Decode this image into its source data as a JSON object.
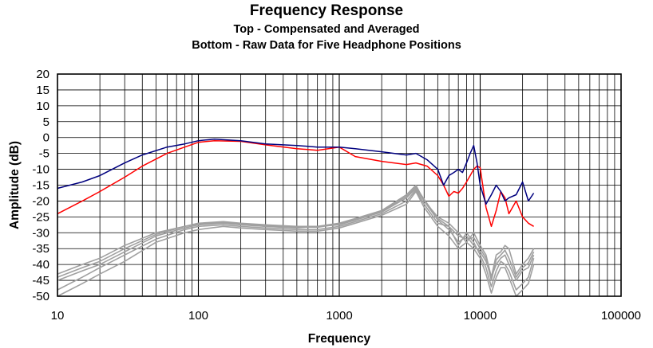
{
  "chart_data": {
    "type": "line",
    "title": "Frequency Response",
    "subtitle_lines": [
      "Top -  Compensated and Averaged",
      "Bottom - Raw Data for Five Headphone Positions"
    ],
    "xlabel": "Frequency",
    "ylabel": "Amplitude (dB)",
    "x_scale": "log",
    "xlim": [
      10,
      100000
    ],
    "ylim": [
      -50,
      20
    ],
    "x_tick_labels": [
      "10",
      "100",
      "1000",
      "10000",
      "100000"
    ],
    "x_ticks": [
      10,
      100,
      1000,
      10000,
      100000
    ],
    "y_ticks": [
      20,
      15,
      10,
      5,
      0,
      -5,
      -10,
      -15,
      -20,
      -25,
      -30,
      -35,
      -40,
      -45,
      -50
    ],
    "y_tick_labels": [
      "20",
      "15",
      "10",
      "5",
      "0",
      "-5",
      "-10",
      "-15",
      "-20",
      "-25",
      "-30",
      "-35",
      "-40",
      "-45",
      "-50"
    ],
    "grid": true,
    "series": [
      {
        "color": "#00007f",
        "x": [
          10,
          15,
          20,
          30,
          40,
          60,
          80,
          100,
          130,
          200,
          300,
          500,
          700,
          1000,
          1300,
          2000,
          3000,
          3500,
          4200,
          5000,
          5500,
          6000,
          6500,
          7000,
          7500,
          8000,
          8500,
          9000,
          9500,
          10000,
          11000,
          12000,
          13000,
          14000,
          15000,
          16000,
          18000,
          20000,
          22000,
          24000
        ],
        "values": [
          -16,
          -14,
          -12,
          -8,
          -5.5,
          -3,
          -2,
          -1,
          -0.5,
          -1,
          -2,
          -2.5,
          -3,
          -3,
          -3.5,
          -4.5,
          -5.5,
          -5,
          -7,
          -10,
          -15,
          -12,
          -11,
          -10,
          -11,
          -8,
          -5,
          -2.5,
          -8,
          -15,
          -21,
          -18,
          -15,
          -17,
          -20,
          -19,
          -18,
          -14,
          -20,
          -17.5
        ]
      },
      {
        "color": "#ff0000",
        "x": [
          10,
          15,
          20,
          30,
          40,
          60,
          80,
          100,
          130,
          200,
          300,
          500,
          700,
          1000,
          1300,
          2000,
          3000,
          3500,
          4200,
          5000,
          5500,
          6000,
          6500,
          7000,
          7500,
          8000,
          8500,
          9000,
          9500,
          10000,
          11000,
          12000,
          13000,
          14000,
          15000,
          16000,
          18000,
          20000,
          22000,
          24000
        ],
        "values": [
          -24,
          -20,
          -17,
          -12.5,
          -9,
          -5,
          -3,
          -1.5,
          -1,
          -1.2,
          -2.3,
          -3.5,
          -4,
          -3,
          -6,
          -7.5,
          -8.5,
          -8,
          -9,
          -12,
          -15,
          -18.5,
          -17,
          -17.5,
          -16,
          -14,
          -12,
          -10,
          -9,
          -9.5,
          -22,
          -28,
          -23,
          -17,
          -19,
          -24,
          -20,
          -25,
          -27,
          -28
        ]
      },
      {
        "color": "#a0a0a0",
        "x": [
          10,
          15,
          20,
          30,
          50,
          80,
          100,
          150,
          200,
          300,
          500,
          700,
          1000,
          1300,
          2000,
          3000,
          3500,
          4000,
          5000,
          6000,
          7000,
          8000,
          9000,
          10000,
          11000,
          12000,
          13000,
          14000,
          15000,
          16000,
          18000,
          20000,
          22000,
          24000
        ],
        "values": [
          -43,
          -40,
          -38,
          -34,
          -30,
          -28,
          -27,
          -26.5,
          -27,
          -27.5,
          -28,
          -28,
          -27,
          -25.5,
          -23,
          -18,
          -15,
          -20,
          -25,
          -27,
          -30,
          -33,
          -30,
          -34,
          -37,
          -44,
          -37,
          -36,
          -34,
          -35,
          -43,
          -40,
          -38,
          -35
        ]
      },
      {
        "color": "#a0a0a0",
        "x": [
          10,
          15,
          20,
          30,
          50,
          80,
          100,
          150,
          200,
          300,
          500,
          700,
          1000,
          1300,
          2000,
          3000,
          3500,
          4000,
          5000,
          6000,
          7000,
          8000,
          9000,
          10000,
          11000,
          12000,
          13000,
          14000,
          15000,
          16000,
          18000,
          20000,
          22000,
          24000
        ],
        "values": [
          -45,
          -42,
          -40,
          -36,
          -31,
          -28.5,
          -27.5,
          -27,
          -27.5,
          -28,
          -28.5,
          -28,
          -27.5,
          -26,
          -23.5,
          -19,
          -16,
          -20,
          -26,
          -29,
          -33,
          -31,
          -34,
          -36,
          -39,
          -44,
          -40,
          -38,
          -37,
          -40,
          -45,
          -42,
          -41,
          -37
        ]
      },
      {
        "color": "#a0a0a0",
        "x": [
          10,
          15,
          20,
          30,
          50,
          80,
          100,
          150,
          200,
          300,
          500,
          700,
          1000,
          1300,
          2000,
          3000,
          3500,
          4000,
          5000,
          6000,
          7000,
          8000,
          9000,
          10000,
          11000,
          12000,
          13000,
          14000,
          15000,
          16000,
          18000,
          20000,
          22000,
          24000
        ],
        "values": [
          -48,
          -44,
          -41,
          -37,
          -32,
          -29,
          -28,
          -27.5,
          -28,
          -28.5,
          -29,
          -29,
          -28,
          -26.5,
          -24,
          -20,
          -16.5,
          -21,
          -27,
          -28,
          -34,
          -30,
          -33,
          -37,
          -41,
          -47,
          -42,
          -39,
          -40,
          -42,
          -48,
          -46,
          -44,
          -38
        ]
      },
      {
        "color": "#a0a0a0",
        "x": [
          10,
          15,
          20,
          30,
          50,
          80,
          100,
          150,
          200,
          300,
          500,
          700,
          1000,
          1300,
          2000,
          3000,
          3500,
          4000,
          5000,
          6000,
          7000,
          8000,
          9000,
          10000,
          11000,
          12000,
          13000,
          14000,
          15000,
          16000,
          18000,
          20000,
          22000,
          24000
        ],
        "values": [
          -50,
          -46,
          -43,
          -39,
          -33,
          -30,
          -29,
          -28,
          -28.5,
          -29,
          -29.5,
          -29.5,
          -28.5,
          -27,
          -24.5,
          -21,
          -17,
          -22,
          -28,
          -31,
          -35,
          -33,
          -35,
          -38,
          -43,
          -49,
          -44,
          -41,
          -41,
          -44,
          -50,
          -48,
          -46,
          -40
        ]
      },
      {
        "color": "#a0a0a0",
        "x": [
          10,
          15,
          20,
          30,
          50,
          80,
          100,
          150,
          200,
          300,
          500,
          700,
          1000,
          1300,
          2000,
          3000,
          3500,
          4000,
          5000,
          6000,
          7000,
          8000,
          9000,
          10000,
          11000,
          12000,
          13000,
          14000,
          15000,
          16000,
          18000,
          20000,
          22000,
          24000
        ],
        "values": [
          -44,
          -41,
          -39,
          -35,
          -30.5,
          -28,
          -27.2,
          -26.8,
          -27.2,
          -27.8,
          -28.2,
          -28.3,
          -27.2,
          -25.8,
          -23.2,
          -18.5,
          -15.5,
          -19.5,
          -25.5,
          -28,
          -31,
          -32,
          -31.5,
          -35,
          -38,
          -45,
          -38.5,
          -37,
          -35.5,
          -38,
          -44,
          -41,
          -39.5,
          -36
        ]
      }
    ]
  }
}
